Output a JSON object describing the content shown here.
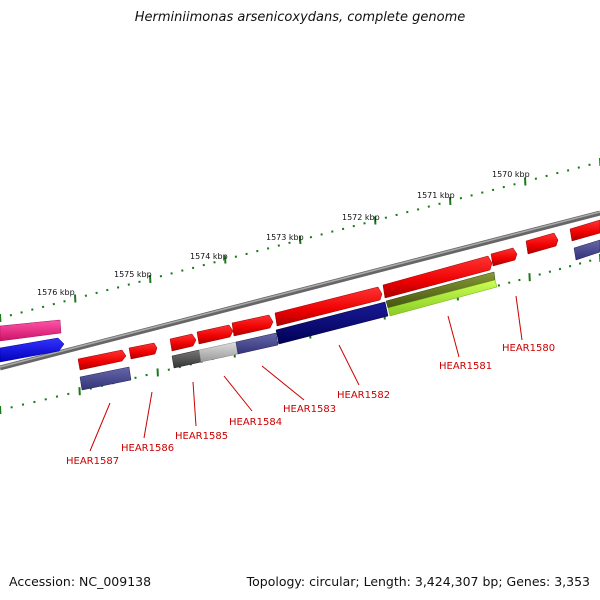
{
  "title": "Herminiimonas arsenicoxydans, complete genome",
  "footer": {
    "accession": "Accession: NC_009138",
    "topology": "Topology: circular; Length: 3,424,307 bp; Genes: 3,353"
  },
  "colors": {
    "backbone": "#888888",
    "tick": "#1a7a1a",
    "forward_gene": "#ee0000",
    "label": "#cc0000",
    "pink": "#ee2288",
    "blue": "#1111ee",
    "navy": "#000077",
    "slate": "#44448a",
    "darkgray": "#555555",
    "lightgray": "#bbbbbb",
    "olive": "#667722",
    "lime": "#aaee33"
  },
  "scale_labels": [
    "1570 kbp",
    "1571 kbp",
    "1572 kbp",
    "1573 kbp",
    "1574 kbp",
    "1575 kbp",
    "1576 kbp"
  ],
  "gene_labels": [
    "HEAR1580",
    "HEAR1581",
    "HEAR1582",
    "HEAR1583",
    "HEAR1584",
    "HEAR1585",
    "HEAR1586",
    "HEAR1587"
  ]
}
